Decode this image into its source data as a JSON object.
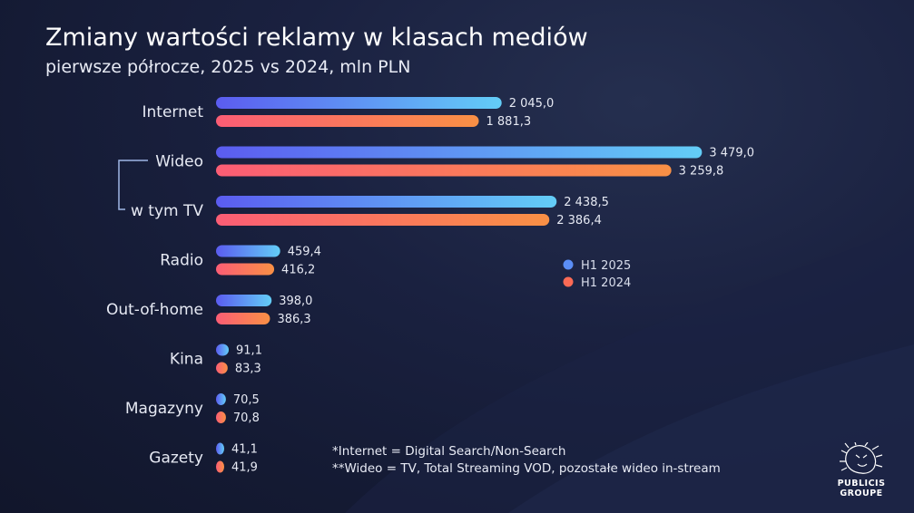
{
  "title": "Zmiany wartości reklamy w klasach mediów",
  "subtitle": "pierwsze półrocze, 2025 vs 2024, mln PLN",
  "chart_data": {
    "type": "bar",
    "orientation": "horizontal",
    "categories": [
      "Internet",
      "Wideo",
      "w tym TV",
      "Radio",
      "Out-of-home",
      "Kina",
      "Magazyny",
      "Gazety"
    ],
    "series": [
      {
        "name": "H1 2025",
        "values": [
          2045.0,
          3479.0,
          2438.5,
          459.4,
          398.0,
          91.1,
          70.5,
          41.1
        ],
        "labels": [
          "2 045,0",
          "3 479,0",
          "2 438,5",
          "459,4",
          "398,0",
          "91,1",
          "70,5",
          "41,1"
        ]
      },
      {
        "name": "H1 2024",
        "values": [
          1881.3,
          3259.8,
          2386.4,
          416.2,
          386.3,
          83.3,
          70.8,
          41.9
        ],
        "labels": [
          "1 881,3",
          "3 259,8",
          "2 386,4",
          "416,2",
          "386,3",
          "83,3",
          "70,8",
          "41,9"
        ]
      }
    ],
    "xlim": [
      0,
      3600
    ],
    "grid": false,
    "legend_position": "right-middle",
    "colors": {
      "h1_2025_start": "#5b5cf0",
      "h1_2025_end": "#63cdf7",
      "h1_2024_start": "#fb5d75",
      "h1_2024_end": "#f99045",
      "legend_2025": "#5b8ef6",
      "legend_2024": "#fb6a55"
    }
  },
  "footnotes": [
    "*Internet = Digital Search/Non-Search",
    "**Wideo = TV, Total Streaming VOD, pozostałe wideo in-stream"
  ],
  "logo": {
    "line1": "PUBLICIS",
    "line2": "GROUPE"
  }
}
